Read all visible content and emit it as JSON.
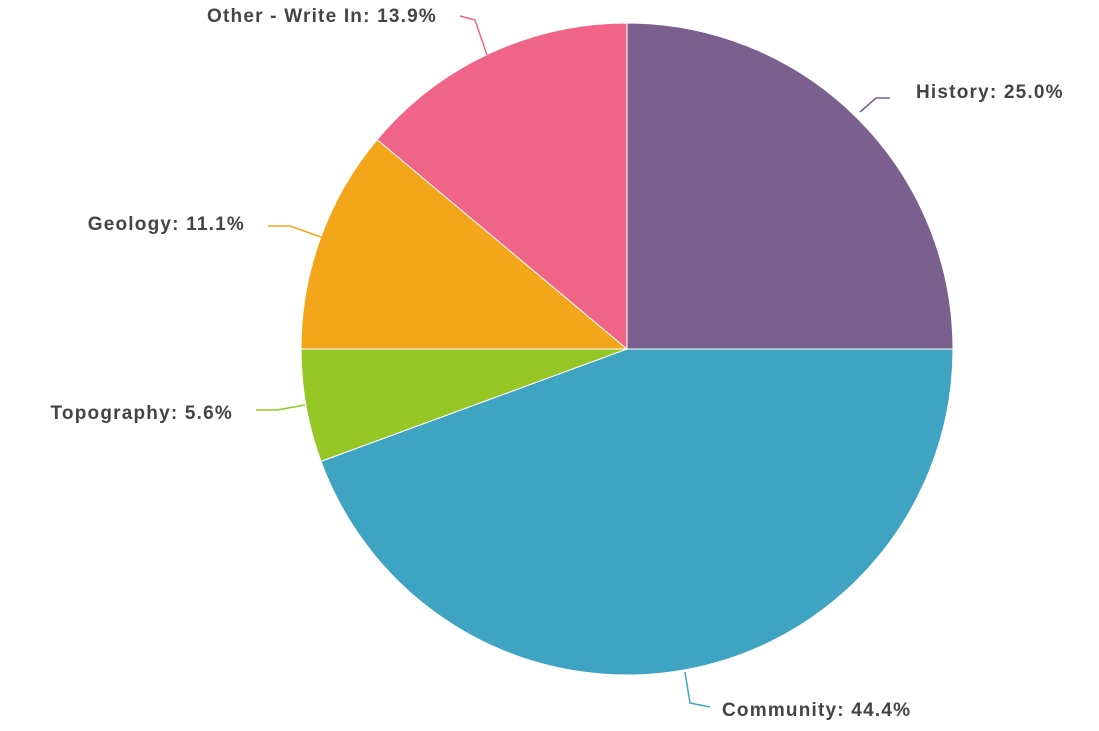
{
  "chart_data": {
    "type": "pie",
    "start_angle_deg": 0,
    "direction": "clockwise",
    "slices": [
      {
        "label": "History",
        "value": 25.0,
        "display": "History: 25.0%",
        "color": "#7B5F8E"
      },
      {
        "label": "Community",
        "value": 44.4,
        "display": "Community: 44.4%",
        "color": "#3FA3C2"
      },
      {
        "label": "Topography",
        "value": 5.6,
        "display": "Topography: 5.6%",
        "color": "#95C626"
      },
      {
        "label": "Geology",
        "value": 11.1,
        "display": "Geology: 11.1%",
        "color": "#F4A61B"
      },
      {
        "label": "Other - Write In",
        "value": 13.9,
        "display": "Other - Write In: 13.9%",
        "color": "#EF6487"
      }
    ]
  }
}
